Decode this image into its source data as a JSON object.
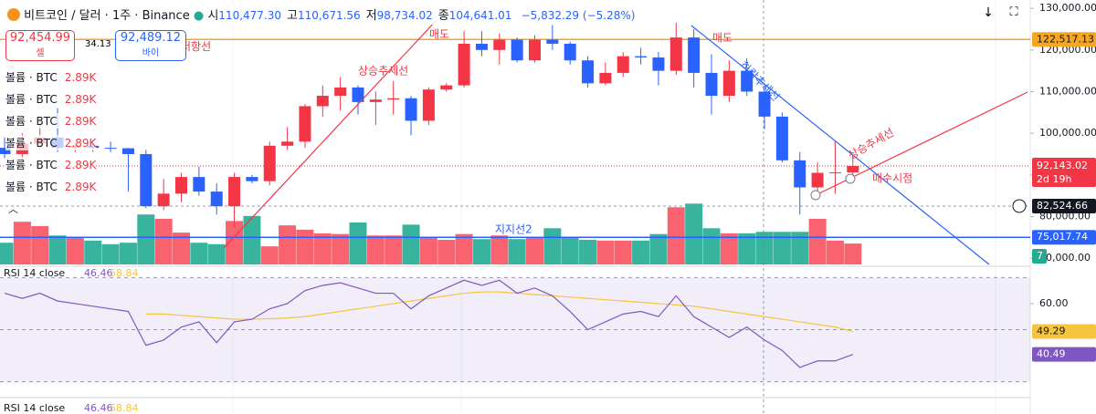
{
  "header": {
    "symbol": "비트코인 / 달러 · 1주 · Binance",
    "ohlc": [
      {
        "label": "시",
        "value": "110,477.30"
      },
      {
        "label": "고",
        "value": "110,671.56"
      },
      {
        "label": "저",
        "value": "98,734.02"
      },
      {
        "label": "종",
        "value": "104,641.01"
      }
    ],
    "change": "−5,832.29 (−5.28%)"
  },
  "trade": {
    "sell_price": "92,454.99",
    "sell_label": "셀",
    "spread": "34.13",
    "buy_price": "92,489.12",
    "buy_label": "바이"
  },
  "legend_rows": [
    {
      "label": "볼륨 · BTC",
      "value": "2.89K"
    },
    {
      "label": "볼륨 · BTC",
      "value": "2.89K"
    },
    {
      "label": "볼륨 · BTC",
      "value": "2.89K"
    },
    {
      "label": "볼륨 · BTC",
      "value": "2.89K"
    },
    {
      "label": "볼륨 · BTC",
      "value": "2.89K"
    },
    {
      "label": "볼륨 · BTC",
      "value": "2.89K"
    }
  ],
  "chart_data": {
    "type": "candlestick",
    "up_color": "#f23645",
    "down_color": "#2962ff",
    "volume_up_color": "#f7525f",
    "volume_down_color": "#22ab94",
    "open": [
      96500,
      95000,
      97500,
      99000,
      96500,
      97000,
      96500,
      96400,
      95000,
      82500,
      85500,
      89500,
      86000,
      82500,
      89500,
      88500,
      97000,
      98000,
      106500,
      109000,
      111000,
      107500,
      108100,
      108400,
      103000,
      110500,
      111500,
      121500,
      120000,
      122500,
      117500,
      122500,
      121500,
      117500,
      112000,
      114500,
      118500,
      118200,
      115000,
      123000,
      114500,
      109000,
      115000,
      110000,
      104000,
      93500,
      87000,
      90500,
      90600
    ],
    "high": [
      99000,
      100000,
      104000,
      106000,
      98000,
      98000,
      98000,
      96500,
      96000,
      89000,
      90500,
      92000,
      88000,
      90500,
      90000,
      98000,
      101500,
      107000,
      111500,
      113500,
      111500,
      110000,
      112500,
      109000,
      111000,
      112000,
      124500,
      124500,
      124000,
      123000,
      123500,
      126000,
      122000,
      118500,
      117000,
      119500,
      120500,
      119500,
      126500,
      125000,
      119000,
      117500,
      118000,
      111500,
      105000,
      95500,
      93000,
      98000,
      94500
    ],
    "low": [
      94000,
      93500,
      96000,
      95500,
      95500,
      95500,
      95500,
      86000,
      82000,
      81500,
      83500,
      85000,
      80500,
      77500,
      88000,
      87500,
      96000,
      96500,
      104000,
      105500,
      104500,
      102000,
      104500,
      99500,
      102000,
      110000,
      111000,
      118500,
      116500,
      117000,
      117000,
      120000,
      116500,
      111000,
      111500,
      113500,
      116500,
      111500,
      114000,
      111000,
      104500,
      107500,
      109000,
      101000,
      93000,
      80500,
      85000,
      85500,
      89500
    ],
    "close": [
      95000,
      97500,
      99000,
      96500,
      97000,
      96500,
      96400,
      95000,
      82500,
      85500,
      89500,
      86000,
      82500,
      89500,
      88500,
      97000,
      98000,
      106500,
      109000,
      111000,
      107500,
      108100,
      108400,
      103000,
      110500,
      111500,
      121500,
      120000,
      122500,
      117500,
      122500,
      121500,
      117500,
      112000,
      114500,
      118500,
      118200,
      115000,
      123000,
      114500,
      109000,
      115000,
      110000,
      104000,
      93500,
      87000,
      90500,
      90600,
      92143.02
    ],
    "volume": [
      3.0,
      5.9,
      5.3,
      4.0,
      3.8,
      3.3,
      2.8,
      3.0,
      6.9,
      6.3,
      4.4,
      3.0,
      2.8,
      6.0,
      6.7,
      2.5,
      5.4,
      4.8,
      4.3,
      4.2,
      5.8,
      4.0,
      4.0,
      5.5,
      3.8,
      3.4,
      4.2,
      3.5,
      4.0,
      3.5,
      3.8,
      5.0,
      3.8,
      3.4,
      3.3,
      3.3,
      3.3,
      4.2,
      7.9,
      8.4,
      5.0,
      4.3,
      4.3,
      4.5,
      4.5,
      4.5,
      6.3,
      3.3,
      2.89
    ],
    "volume_badge": "7",
    "ylim": [
      68500,
      132000
    ],
    "yticks": [
      {
        "value": 130000,
        "label": "130,000.00"
      },
      {
        "value": 120000,
        "label": "120,000.00"
      },
      {
        "value": 110000,
        "label": "110,000.00"
      },
      {
        "value": 100000,
        "label": "100,000.00"
      },
      {
        "value": 90000,
        "label": "90,000.00"
      },
      {
        "value": 80000,
        "label": "80,000.00"
      },
      {
        "value": 70000,
        "label": "70,000.00"
      }
    ],
    "price_lines": [
      {
        "name": "저항선",
        "value": 122517.13,
        "label": "122,517.13",
        "color": "#f5a623"
      },
      {
        "name": "지지선2",
        "value": 75017.74,
        "label": "75,017.74",
        "color": "#2962ff"
      }
    ],
    "last_price": {
      "label": "92,143.02",
      "countdown": "2d 19h"
    },
    "crosshair": {
      "value": 82524.66,
      "label": "82,524.66"
    },
    "annotations": [
      "상승추세선",
      "매도",
      "매도",
      "하락추세선",
      "상승추세선",
      "매수시점"
    ],
    "rsi": {
      "title": "RSI 14 close",
      "readings": [
        "46.46",
        "58.84"
      ],
      "color": "#7e57c2",
      "ma_color": "#f5c542",
      "values": [
        64,
        62,
        64,
        61,
        60,
        59,
        58,
        57,
        44,
        46,
        51,
        53,
        45,
        53,
        54,
        58,
        60,
        65,
        67,
        68,
        66,
        64,
        64,
        58,
        63,
        66,
        69,
        67,
        69,
        64,
        66,
        63,
        57,
        50,
        53,
        56,
        57,
        55,
        63,
        55,
        51,
        47,
        51,
        46,
        42,
        35.5,
        38,
        38,
        40.49
      ],
      "ma": [
        null,
        null,
        null,
        null,
        null,
        null,
        null,
        null,
        56,
        56,
        55.5,
        55,
        54.5,
        54,
        54,
        54.2,
        54.5,
        55,
        56,
        57,
        58,
        59,
        60,
        61,
        62,
        63,
        64,
        64.5,
        64.5,
        64,
        63.5,
        63,
        62.5,
        62,
        61.5,
        61,
        60.5,
        60,
        59.5,
        59,
        58,
        57,
        56,
        55,
        54,
        53,
        52,
        51,
        49.29
      ],
      "ylim": [
        25.3,
        73.3
      ],
      "yticks": [
        {
          "value": 60,
          "label": "60.00"
        }
      ],
      "levels": [
        70,
        50,
        30
      ]
    }
  }
}
